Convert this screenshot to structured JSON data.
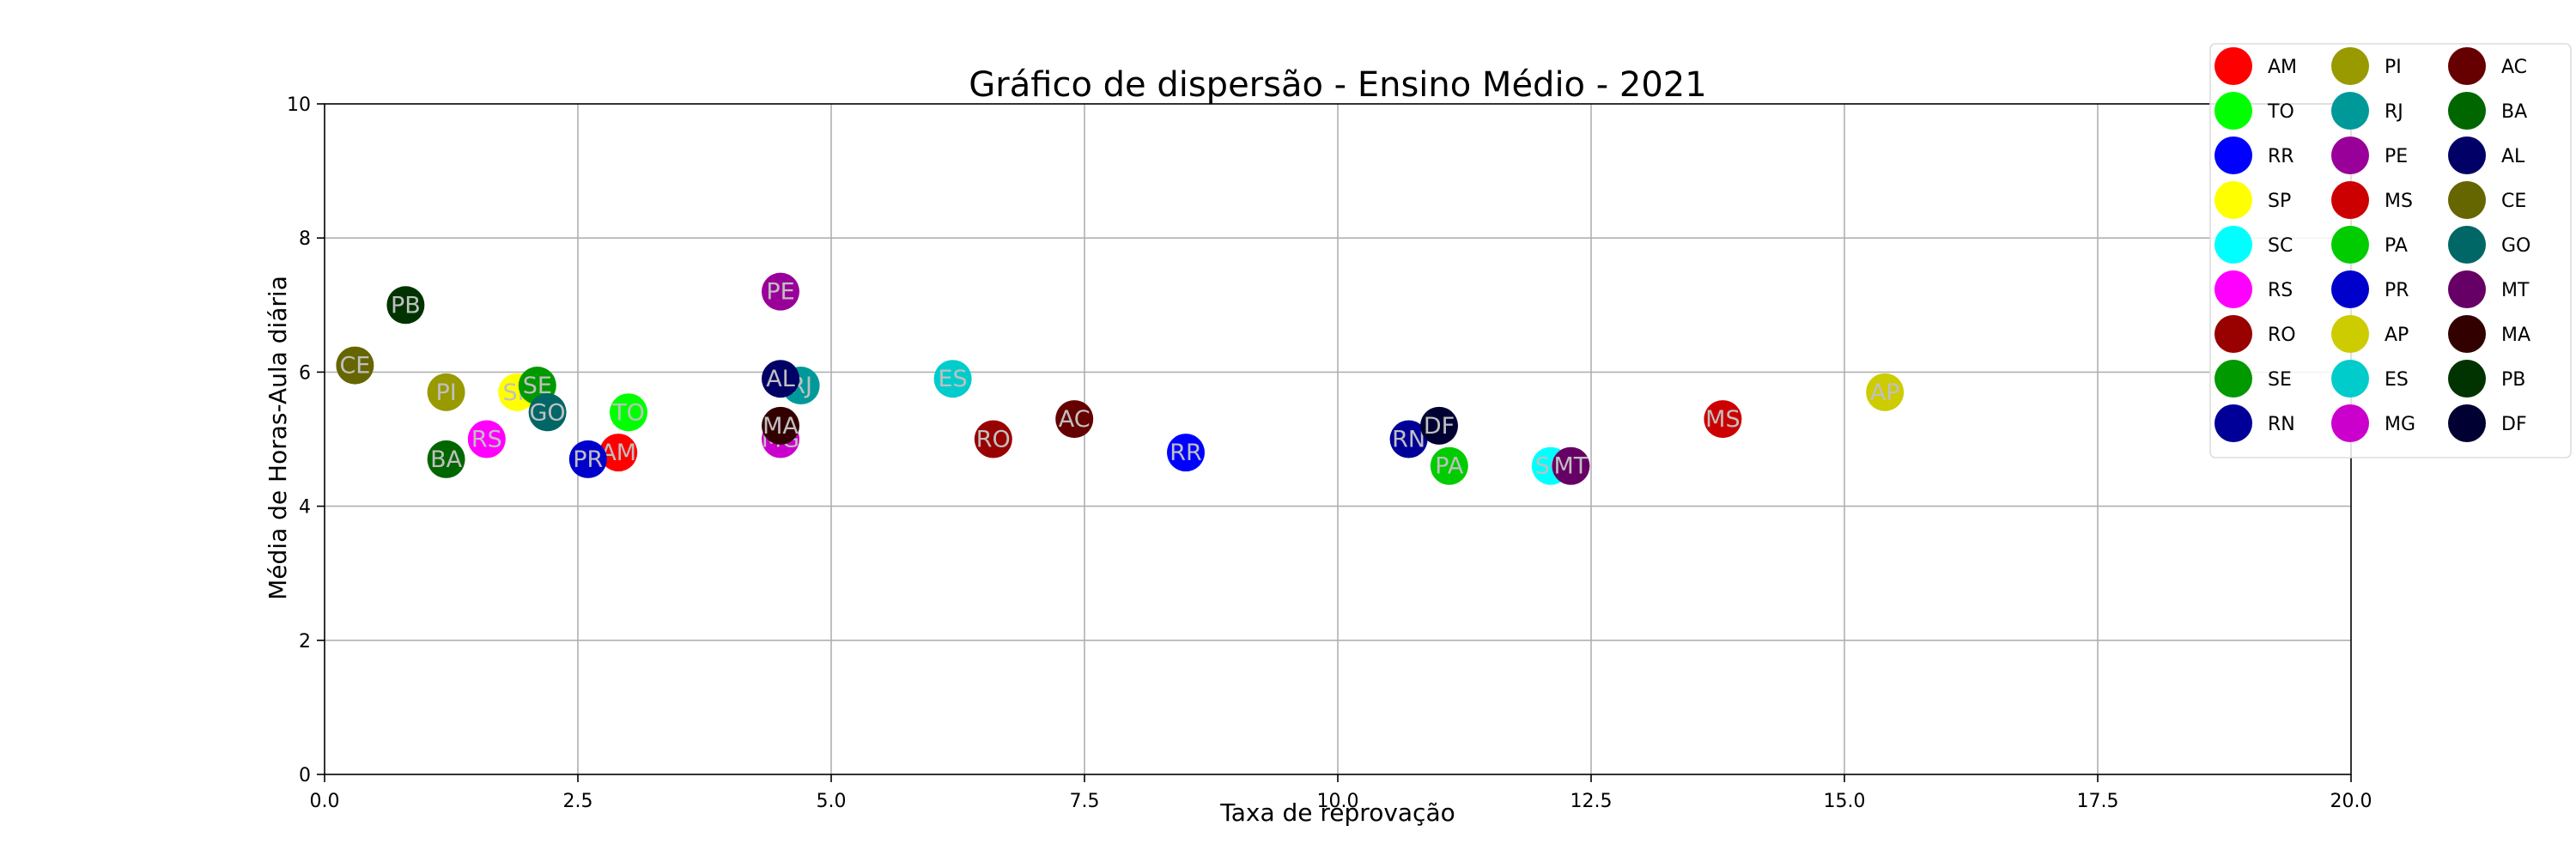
{
  "chart_data": {
    "type": "scatter",
    "title": "Gráfico de dispersão - Ensino Médio - 2021",
    "xlabel": "Taxa de reprovação",
    "ylabel": "Média de Horas-Aula diária",
    "xlim": [
      0,
      20
    ],
    "ylim": [
      0,
      10
    ],
    "xticks": [
      "0.0",
      "2.5",
      "5.0",
      "7.5",
      "10.0",
      "12.5",
      "15.0",
      "17.5",
      "20.0"
    ],
    "xtick_values": [
      0,
      2.5,
      5,
      7.5,
      10,
      12.5,
      15,
      17.5,
      20
    ],
    "yticks": [
      "0",
      "2",
      "4",
      "6",
      "8",
      "10"
    ],
    "ytick_values": [
      0,
      2,
      4,
      6,
      8,
      10
    ],
    "grid": true,
    "legend_position": "top-right",
    "legend_columns": 3,
    "points": [
      {
        "label": "AM",
        "x": 2.9,
        "y": 4.8,
        "color": "#ff0000"
      },
      {
        "label": "TO",
        "x": 3.0,
        "y": 5.4,
        "color": "#00ff00"
      },
      {
        "label": "RR",
        "x": 8.5,
        "y": 4.8,
        "color": "#0000ff"
      },
      {
        "label": "SP",
        "x": 1.9,
        "y": 5.7,
        "color": "#ffff00"
      },
      {
        "label": "SC",
        "x": 12.1,
        "y": 4.6,
        "color": "#00ffff"
      },
      {
        "label": "RS",
        "x": 1.6,
        "y": 5.0,
        "color": "#ff00ff"
      },
      {
        "label": "RO",
        "x": 6.6,
        "y": 5.0,
        "color": "#990000"
      },
      {
        "label": "SE",
        "x": 2.1,
        "y": 5.8,
        "color": "#009900"
      },
      {
        "label": "RN",
        "x": 10.7,
        "y": 5.0,
        "color": "#000099"
      },
      {
        "label": "PI",
        "x": 1.2,
        "y": 5.7,
        "color": "#999900"
      },
      {
        "label": "RJ",
        "x": 4.7,
        "y": 5.8,
        "color": "#009999"
      },
      {
        "label": "PE",
        "x": 4.5,
        "y": 7.2,
        "color": "#990099"
      },
      {
        "label": "MS",
        "x": 13.8,
        "y": 5.3,
        "color": "#cc0000"
      },
      {
        "label": "PA",
        "x": 11.1,
        "y": 4.6,
        "color": "#00cc00"
      },
      {
        "label": "PR",
        "x": 2.6,
        "y": 4.7,
        "color": "#0000cc"
      },
      {
        "label": "AP",
        "x": 15.4,
        "y": 5.7,
        "color": "#cccc00"
      },
      {
        "label": "ES",
        "x": 6.2,
        "y": 5.9,
        "color": "#00cccc"
      },
      {
        "label": "MG",
        "x": 4.5,
        "y": 5.0,
        "color": "#cc00cc"
      },
      {
        "label": "AC",
        "x": 7.4,
        "y": 5.3,
        "color": "#660000"
      },
      {
        "label": "BA",
        "x": 1.2,
        "y": 4.7,
        "color": "#006600"
      },
      {
        "label": "AL",
        "x": 4.5,
        "y": 5.9,
        "color": "#000066"
      },
      {
        "label": "CE",
        "x": 0.3,
        "y": 6.1,
        "color": "#666600"
      },
      {
        "label": "GO",
        "x": 2.2,
        "y": 5.4,
        "color": "#006666"
      },
      {
        "label": "MT",
        "x": 12.3,
        "y": 4.6,
        "color": "#660066"
      },
      {
        "label": "MA",
        "x": 4.5,
        "y": 5.2,
        "color": "#330000"
      },
      {
        "label": "PB",
        "x": 0.8,
        "y": 7.0,
        "color": "#003300"
      },
      {
        "label": "DF",
        "x": 11.0,
        "y": 5.2,
        "color": "#000033"
      }
    ]
  }
}
